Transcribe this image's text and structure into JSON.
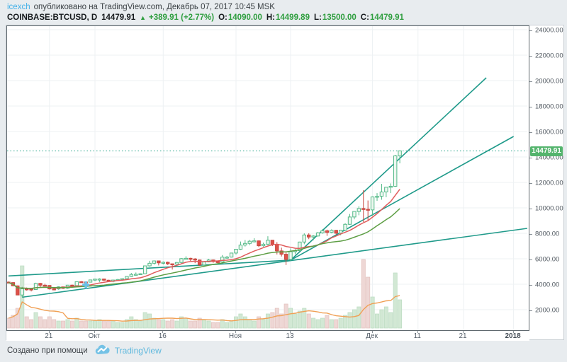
{
  "header": {
    "author": "icexch",
    "published": "опубликовано на TradingView.com, Декабрь 07, 2017 10:45 MSK",
    "symbol": "COINBASE:BTCUSD, D",
    "last": "14479.91",
    "arrow": "▲",
    "change": "+389.91 (+2.77%)",
    "o_label": "O:",
    "o_value": "14090.00",
    "h_label": "H:",
    "h_value": "14499.89",
    "l_label": "L:",
    "l_value": "13500.00",
    "c_label": "C:",
    "c_value": "14479.91"
  },
  "footer": {
    "created": "Создано при помощи",
    "brand": "TradingView"
  },
  "price_axis": {
    "labels": [
      "24000.00",
      "22000.00",
      "20000.00",
      "18000.00",
      "16000.00",
      "14000.00",
      "12000.00",
      "10000.00",
      "8000.00",
      "6000.00",
      "4000.00",
      "2000.00"
    ],
    "badge": "14479.91"
  },
  "time_axis": {
    "ticks": [
      {
        "label": "21",
        "day": 9,
        "bold": false
      },
      {
        "label": "Окт",
        "day": 19,
        "bold": false
      },
      {
        "label": "16",
        "day": 34,
        "bold": false
      },
      {
        "label": "Ноя",
        "day": 50,
        "bold": false
      },
      {
        "label": "13",
        "day": 62,
        "bold": false
      },
      {
        "label": "Дек",
        "day": 80,
        "bold": false
      },
      {
        "label": "11",
        "day": 90,
        "bold": false
      },
      {
        "label": "21",
        "day": 100,
        "bold": false
      },
      {
        "label": "2018",
        "day": 111,
        "bold": true
      }
    ]
  },
  "colors": {
    "page_bg": "#e8ecef",
    "grid": "#edf1f3",
    "up_border": "#53b987",
    "up_fill": "#eef7f0",
    "down_border": "#c74840",
    "down_fill": "#de5149",
    "ma_fast": "#e05c5c",
    "ma_slow": "#5d9e44",
    "trend": "#1f9a8a",
    "current_price_line": "#1fa184",
    "vol_up": "#d2e8d4",
    "vol_up_border": "#bcdcc2",
    "vol_down": "#eed7d5",
    "vol_down_border": "#e3c2be",
    "vol_ma": "#f0a055",
    "badge_bg": "#54b46d",
    "accent_blue": "#45b1e8",
    "text_green": "#2f9e3f",
    "marker_blue": "#6ac1e8"
  },
  "chart_data": {
    "type": "candlestick",
    "title": "COINBASE:BTCUSD, D",
    "exchange": "COINBASE",
    "symbol": "BTCUSD",
    "interval": "D",
    "start_date": "2017-09-12",
    "end_date": "2017-12-07",
    "current_price": 14479.91,
    "ylim": [
      2000,
      24000
    ],
    "grid": true,
    "columns": [
      "open",
      "high",
      "low",
      "close",
      "volume_rel"
    ],
    "candles": [
      [
        4168,
        4212,
        4088,
        4130,
        14
      ],
      [
        4130,
        4155,
        3851,
        3874,
        18
      ],
      [
        3874,
        3896,
        3151,
        3154,
        28
      ],
      [
        3154,
        3795,
        2980,
        3637,
        88
      ],
      [
        3637,
        3744,
        3500,
        3625,
        16
      ],
      [
        3625,
        3692,
        3435,
        3582,
        12
      ],
      [
        3582,
        4119,
        3563,
        4065,
        22
      ],
      [
        4065,
        4108,
        3774,
        3924,
        16
      ],
      [
        3924,
        4043,
        3850,
        3905,
        12
      ],
      [
        3905,
        3919,
        3583,
        3631,
        16
      ],
      [
        3631,
        3760,
        3520,
        3630,
        12
      ],
      [
        3630,
        3832,
        3566,
        3792,
        10
      ],
      [
        3792,
        3815,
        3623,
        3682,
        10
      ],
      [
        3682,
        3950,
        3632,
        3926,
        12
      ],
      [
        3926,
        3969,
        3820,
        3892,
        10
      ],
      [
        3892,
        4210,
        3856,
        4200,
        14
      ],
      [
        4200,
        4240,
        4110,
        4174,
        10
      ],
      [
        4174,
        4208,
        4034,
        4163,
        10
      ],
      [
        4163,
        4358,
        4160,
        4338,
        10
      ],
      [
        4338,
        4418,
        4245,
        4403,
        10
      ],
      [
        4403,
        4470,
        4175,
        4409,
        12
      ],
      [
        4409,
        4432,
        4258,
        4317,
        10
      ],
      [
        4317,
        4352,
        4168,
        4229,
        10
      ],
      [
        4229,
        4362,
        4154,
        4328,
        10
      ],
      [
        4328,
        4413,
        4321,
        4370,
        8
      ],
      [
        4370,
        4470,
        4312,
        4436,
        8
      ],
      [
        4436,
        4629,
        4410,
        4610,
        12
      ],
      [
        4610,
        4879,
        4569,
        4772,
        16
      ],
      [
        4772,
        4922,
        4692,
        4781,
        12
      ],
      [
        4781,
        4868,
        4751,
        4826,
        10
      ],
      [
        4826,
        5446,
        4812,
        5443,
        22
      ],
      [
        5443,
        5840,
        5380,
        5647,
        20
      ],
      [
        5647,
        5865,
        5551,
        5831,
        14
      ],
      [
        5831,
        5846,
        5478,
        5678,
        12
      ],
      [
        5678,
        5787,
        5555,
        5725,
        12
      ],
      [
        5725,
        5780,
        5515,
        5605,
        10
      ],
      [
        5605,
        5613,
        5155,
        5590,
        12
      ],
      [
        5590,
        5744,
        5533,
        5708,
        10
      ],
      [
        5708,
        6060,
        5625,
        6011,
        16
      ],
      [
        6011,
        6194,
        5950,
        6036,
        14
      ],
      [
        6036,
        6080,
        5830,
        5985,
        10
      ],
      [
        5985,
        6050,
        5656,
        5905,
        10
      ],
      [
        5905,
        5935,
        5450,
        5510,
        14
      ],
      [
        5510,
        5760,
        5378,
        5750,
        12
      ],
      [
        5750,
        5994,
        5718,
        5904,
        10
      ],
      [
        5904,
        5938,
        5690,
        5780,
        8
      ],
      [
        5780,
        5870,
        5635,
        5755,
        8
      ],
      [
        5755,
        6290,
        5690,
        6130,
        12
      ],
      [
        6130,
        6225,
        6005,
        6130,
        8
      ],
      [
        6130,
        6470,
        6103,
        6450,
        10
      ],
      [
        6450,
        6767,
        6335,
        6750,
        16
      ],
      [
        6750,
        7355,
        6697,
        7078,
        20
      ],
      [
        7078,
        7473,
        6960,
        7207,
        16
      ],
      [
        7207,
        7479,
        7068,
        7379,
        12
      ],
      [
        7379,
        7617,
        7289,
        7407,
        10
      ],
      [
        7407,
        7445,
        6920,
        7022,
        16
      ],
      [
        7022,
        7265,
        6950,
        7144,
        12
      ],
      [
        7144,
        7770,
        7080,
        7459,
        20
      ],
      [
        7459,
        7460,
        7002,
        7143,
        22
      ],
      [
        7143,
        7312,
        6340,
        6618,
        28
      ],
      [
        6618,
        6873,
        6181,
        6357,
        20
      ],
      [
        6357,
        6500,
        5507,
        5950,
        34
      ],
      [
        5950,
        6811,
        5844,
        6559,
        28
      ],
      [
        6559,
        6760,
        6361,
        6635,
        20
      ],
      [
        6635,
        7342,
        6634,
        7315,
        24
      ],
      [
        7315,
        7997,
        7141,
        7871,
        28
      ],
      [
        7871,
        8004,
        7540,
        7708,
        20
      ],
      [
        7708,
        7862,
        7458,
        7790,
        14
      ],
      [
        7790,
        8102,
        7738,
        8036,
        12
      ],
      [
        8036,
        8322,
        7966,
        8200,
        14
      ],
      [
        8200,
        8290,
        7800,
        8071,
        18
      ],
      [
        8071,
        8316,
        8000,
        8235,
        12
      ],
      [
        8235,
        8268,
        7930,
        8010,
        12
      ],
      [
        8010,
        8280,
        7850,
        8250,
        14
      ],
      [
        8250,
        8790,
        8200,
        8707,
        18
      ],
      [
        8707,
        9522,
        8663,
        9284,
        22
      ],
      [
        9284,
        9747,
        9100,
        9718,
        26
      ],
      [
        9718,
        10125,
        9421,
        9950,
        30
      ],
      [
        9950,
        11395,
        8891,
        9888,
        97
      ],
      [
        9888,
        10580,
        9000,
        9840,
        72
      ],
      [
        9840,
        10898,
        9380,
        10860,
        44
      ],
      [
        10860,
        11160,
        10554,
        10912,
        20
      ],
      [
        10912,
        11888,
        10640,
        11250,
        26
      ],
      [
        11250,
        11625,
        10837,
        11620,
        30
      ],
      [
        11620,
        11920,
        11159,
        11696,
        22
      ],
      [
        11696,
        14165,
        11640,
        14090,
        78
      ],
      [
        14090,
        14499.89,
        13500,
        14479.91,
        40
      ]
    ],
    "overlays": [
      {
        "name": "MA fast",
        "type": "sma_close",
        "window": 10,
        "color_key": "ma_fast"
      },
      {
        "name": "MA slow",
        "type": "sma_close",
        "window": 20,
        "color_key": "ma_slow"
      },
      {
        "name": "Volume MA",
        "type": "sma_volume",
        "window": 10,
        "color_key": "vol_ma"
      }
    ],
    "trendlines": [
      {
        "from_day": 0,
        "from_price": 4650,
        "to_day": 62,
        "to_price": 5890
      },
      {
        "from_day": 3,
        "from_price": 2980,
        "to_day": 114,
        "to_price": 8389
      },
      {
        "from_day": 62,
        "from_price": 5890,
        "to_day": 105,
        "to_price": 20222
      },
      {
        "from_day": 62,
        "from_price": 5890,
        "to_day": 111,
        "to_price": 15611
      }
    ],
    "marker": {
      "day": 17,
      "price": 3950,
      "shape": "cross"
    }
  }
}
